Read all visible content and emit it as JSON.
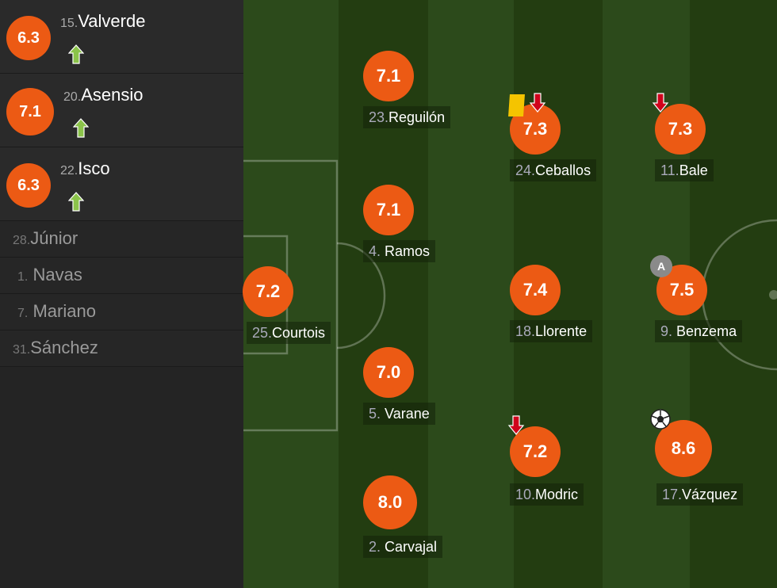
{
  "colors": {
    "rating": "#ec5a14",
    "sub_in": "#8bc34a",
    "sub_out": "#d0021b",
    "yellow_card": "#f5c400"
  },
  "substitutes_used": [
    {
      "number": "15.",
      "name": "Valverde",
      "rating": "6.3",
      "icon": "arrow-up-icon"
    },
    {
      "number": "20.",
      "name": "Asensio",
      "rating": "7.1",
      "icon": "arrow-up-icon"
    },
    {
      "number": "22.",
      "name": "Isco",
      "rating": "6.3",
      "icon": "arrow-up-icon"
    }
  ],
  "bench": [
    {
      "number": "28.",
      "name": "Júnior"
    },
    {
      "number": "1.",
      "name": "Navas"
    },
    {
      "number": "7.",
      "name": "Mariano"
    },
    {
      "number": "31.",
      "name": "Sánchez"
    }
  ],
  "lineup": {
    "courtois": {
      "number": "25.",
      "name": "Courtois",
      "rating": "7.2"
    },
    "reguilon": {
      "number": "23.",
      "name": "Reguilón",
      "rating": "7.1"
    },
    "ramos": {
      "number": "4.",
      "name": "Ramos",
      "rating": "7.1"
    },
    "varane": {
      "number": "5.",
      "name": "Varane",
      "rating": "7.0"
    },
    "carvajal": {
      "number": "2.",
      "name": "Carvajal",
      "rating": "8.0"
    },
    "ceballos": {
      "number": "24.",
      "name": "Ceballos",
      "rating": "7.3",
      "icons": [
        "yellow-card-icon",
        "arrow-down-icon"
      ]
    },
    "llorente": {
      "number": "18.",
      "name": "Llorente",
      "rating": "7.4"
    },
    "modric": {
      "number": "10.",
      "name": "Modric",
      "rating": "7.2",
      "icons": [
        "arrow-down-icon"
      ]
    },
    "bale": {
      "number": "11.",
      "name": "Bale",
      "rating": "7.3",
      "icons": [
        "arrow-down-icon"
      ]
    },
    "benzema": {
      "number": "9.",
      "name": "Benzema",
      "rating": "7.5",
      "captain": "A"
    },
    "vazquez": {
      "number": "17.",
      "name": "Vázquez",
      "rating": "8.6",
      "icons": [
        "ball-icon"
      ]
    }
  }
}
